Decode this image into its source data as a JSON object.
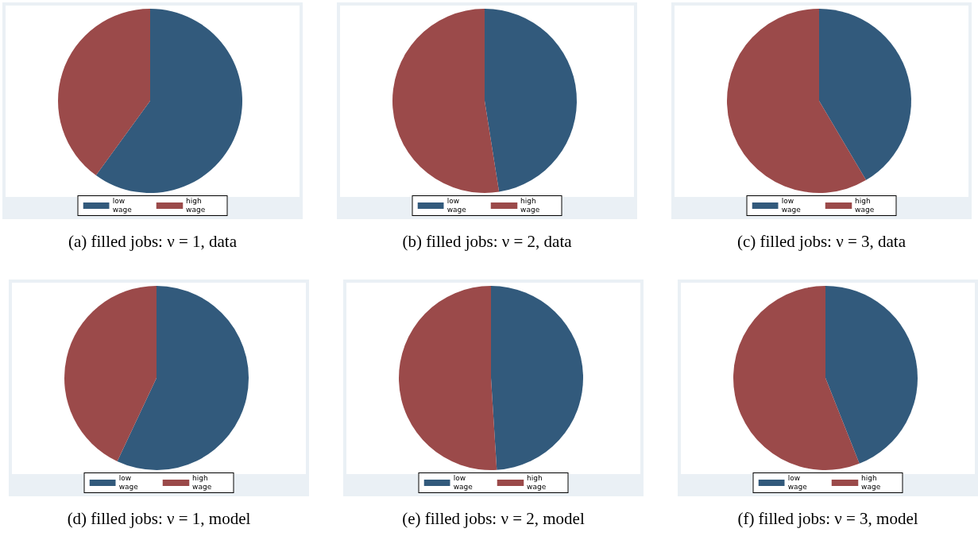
{
  "chart_data": [
    {
      "type": "pie",
      "title": "(a) filled jobs: ν = 1, data",
      "categories": [
        "low wage",
        "high wage"
      ],
      "values": [
        60,
        40
      ],
      "colors": [
        "#325a7c",
        "#9b4a4a"
      ],
      "legend": "bottom"
    },
    {
      "type": "pie",
      "title": "(b) filled jobs: ν = 2, data",
      "categories": [
        "low wage",
        "high wage"
      ],
      "values": [
        47.5,
        52.5
      ],
      "colors": [
        "#325a7c",
        "#9b4a4a"
      ],
      "legend": "bottom"
    },
    {
      "type": "pie",
      "title": "(c) filled jobs: ν = 3, data",
      "categories": [
        "low wage",
        "high wage"
      ],
      "values": [
        41.5,
        58.5
      ],
      "colors": [
        "#325a7c",
        "#9b4a4a"
      ],
      "legend": "bottom"
    },
    {
      "type": "pie",
      "title": "(d) filled jobs: ν = 1, model",
      "categories": [
        "low wage",
        "high wage"
      ],
      "values": [
        57,
        43
      ],
      "colors": [
        "#325a7c",
        "#9b4a4a"
      ],
      "legend": "bottom"
    },
    {
      "type": "pie",
      "title": "(e) filled jobs: ν = 2, model",
      "categories": [
        "low wage",
        "high wage"
      ],
      "values": [
        49,
        51
      ],
      "colors": [
        "#325a7c",
        "#9b4a4a"
      ],
      "legend": "bottom"
    },
    {
      "type": "pie",
      "title": "(f) filled jobs: ν = 3, model",
      "categories": [
        "low wage",
        "high wage"
      ],
      "values": [
        44,
        56
      ],
      "colors": [
        "#325a7c",
        "#9b4a4a"
      ],
      "legend": "bottom"
    }
  ]
}
